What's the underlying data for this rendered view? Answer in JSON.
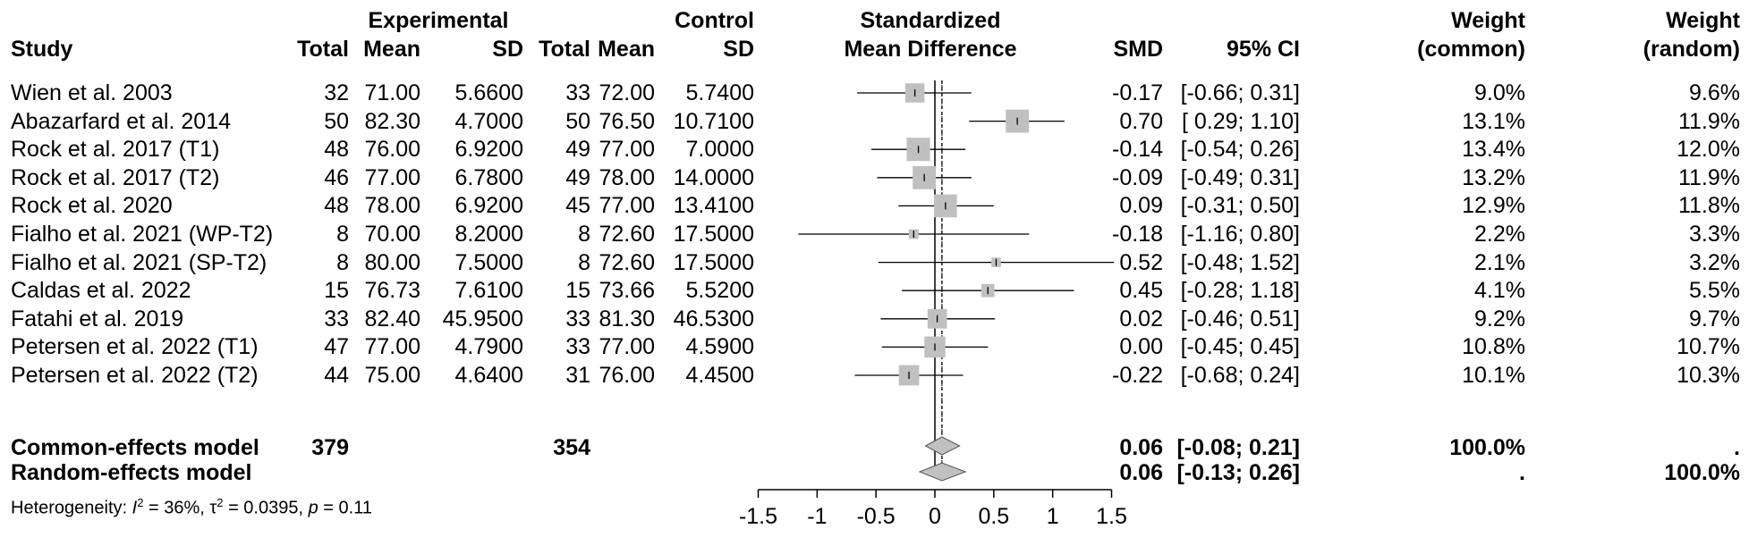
{
  "headers": {
    "experimental": "Experimental",
    "control": "Control",
    "smd_top": "Standardized",
    "smd_bottom": "Mean Difference",
    "study": "Study",
    "total": "Total",
    "mean": "Mean",
    "sd": "SD",
    "smd": "SMD",
    "ci": "95% CI",
    "weight": "Weight",
    "common": "(common)",
    "random": "(random)"
  },
  "studies": [
    {
      "study": "Wien et al. 2003",
      "e_total": "32",
      "e_mean": "71.00",
      "e_sd": "5.6600",
      "c_total": "33",
      "c_mean": "72.00",
      "c_sd": "5.7400",
      "smd": "-0.17",
      "ci": "[-0.66; 0.31]",
      "w_common": "9.0%",
      "w_random": "9.6%"
    },
    {
      "study": "Abazarfard et al. 2014",
      "e_total": "50",
      "e_mean": "82.30",
      "e_sd": "4.7000",
      "c_total": "50",
      "c_mean": "76.50",
      "c_sd": "10.7100",
      "smd": "0.70",
      "ci": "[ 0.29; 1.10]",
      "w_common": "13.1%",
      "w_random": "11.9%"
    },
    {
      "study": "Rock et al. 2017 (T1)",
      "e_total": "48",
      "e_mean": "76.00",
      "e_sd": "6.9200",
      "c_total": "49",
      "c_mean": "77.00",
      "c_sd": "7.0000",
      "smd": "-0.14",
      "ci": "[-0.54; 0.26]",
      "w_common": "13.4%",
      "w_random": "12.0%"
    },
    {
      "study": "Rock et al. 2017 (T2)",
      "e_total": "46",
      "e_mean": "77.00",
      "e_sd": "6.7800",
      "c_total": "49",
      "c_mean": "78.00",
      "c_sd": "14.0000",
      "smd": "-0.09",
      "ci": "[-0.49; 0.31]",
      "w_common": "13.2%",
      "w_random": "11.9%"
    },
    {
      "study": "Rock et al. 2020",
      "e_total": "48",
      "e_mean": "78.00",
      "e_sd": "6.9200",
      "c_total": "45",
      "c_mean": "77.00",
      "c_sd": "13.4100",
      "smd": "0.09",
      "ci": "[-0.31; 0.50]",
      "w_common": "12.9%",
      "w_random": "11.8%"
    },
    {
      "study": "Fialho et al. 2021 (WP-T2)",
      "e_total": "8",
      "e_mean": "70.00",
      "e_sd": "8.2000",
      "c_total": "8",
      "c_mean": "72.60",
      "c_sd": "17.5000",
      "smd": "-0.18",
      "ci": "[-1.16; 0.80]",
      "w_common": "2.2%",
      "w_random": "3.3%"
    },
    {
      "study": "Fialho et al. 2021 (SP-T2)",
      "e_total": "8",
      "e_mean": "80.00",
      "e_sd": "7.5000",
      "c_total": "8",
      "c_mean": "72.60",
      "c_sd": "17.5000",
      "smd": "0.52",
      "ci": "[-0.48; 1.52]",
      "w_common": "2.1%",
      "w_random": "3.2%"
    },
    {
      "study": "Caldas et al. 2022",
      "e_total": "15",
      "e_mean": "76.73",
      "e_sd": "7.6100",
      "c_total": "15",
      "c_mean": "73.66",
      "c_sd": "5.5200",
      "smd": "0.45",
      "ci": "[-0.28; 1.18]",
      "w_common": "4.1%",
      "w_random": "5.5%"
    },
    {
      "study": "Fatahi et al. 2019",
      "e_total": "33",
      "e_mean": "82.40",
      "e_sd": "45.9500",
      "c_total": "33",
      "c_mean": "81.30",
      "c_sd": "46.5300",
      "smd": "0.02",
      "ci": "[-0.46; 0.51]",
      "w_common": "9.2%",
      "w_random": "9.7%"
    },
    {
      "study": "Petersen et al. 2022 (T1)",
      "e_total": "47",
      "e_mean": "77.00",
      "e_sd": "4.7900",
      "c_total": "33",
      "c_mean": "77.00",
      "c_sd": "4.5900",
      "smd": "0.00",
      "ci": "[-0.45; 0.45]",
      "w_common": "10.8%",
      "w_random": "10.7%"
    },
    {
      "study": "Petersen et al. 2022 (T2)",
      "e_total": "44",
      "e_mean": "75.00",
      "e_sd": "4.6400",
      "c_total": "31",
      "c_mean": "76.00",
      "c_sd": "4.4500",
      "smd": "-0.22",
      "ci": "[-0.68; 0.24]",
      "w_common": "10.1%",
      "w_random": "10.3%"
    }
  ],
  "common_model": {
    "label": "Common-effects model",
    "e_total": "379",
    "c_total": "354",
    "smd": "0.06",
    "ci": "[-0.08; 0.21]",
    "w_common": "100.0%",
    "w_random": "."
  },
  "random_model": {
    "label": "Random-effects model",
    "smd": "0.06",
    "ci": "[-0.13; 0.26]",
    "w_common": ".",
    "w_random": "100.0%"
  },
  "heterogeneity": {
    "prefix": "Heterogeneity: ",
    "i2_sym": "I",
    "i2_sup": "2",
    "i2_val": " = 36%, ",
    "tau_sym": "τ",
    "tau_sup": "2",
    "tau_val": " = 0.0395, ",
    "p_sym": "p",
    "p_val": " = 0.11"
  },
  "chart_data": {
    "type": "forest",
    "xlim": [
      -1.5,
      1.5
    ],
    "ticks": [
      "-1.5",
      "-1",
      "-0.5",
      "0",
      "0.5",
      "1",
      "1.5"
    ],
    "tick_values": [
      -1.5,
      -1,
      -0.5,
      0,
      0.5,
      1,
      1.5
    ],
    "points": [
      {
        "smd": -0.17,
        "lo": -0.66,
        "hi": 0.31,
        "w": 9.0
      },
      {
        "smd": 0.7,
        "lo": 0.29,
        "hi": 1.1,
        "w": 13.1
      },
      {
        "smd": -0.14,
        "lo": -0.54,
        "hi": 0.26,
        "w": 13.4
      },
      {
        "smd": -0.09,
        "lo": -0.49,
        "hi": 0.31,
        "w": 13.2
      },
      {
        "smd": 0.09,
        "lo": -0.31,
        "hi": 0.5,
        "w": 12.9
      },
      {
        "smd": -0.18,
        "lo": -1.16,
        "hi": 0.8,
        "w": 2.2
      },
      {
        "smd": 0.52,
        "lo": -0.48,
        "hi": 1.52,
        "w": 2.1
      },
      {
        "smd": 0.45,
        "lo": -0.28,
        "hi": 1.18,
        "w": 4.1
      },
      {
        "smd": 0.02,
        "lo": -0.46,
        "hi": 0.51,
        "w": 9.2
      },
      {
        "smd": 0.0,
        "lo": -0.45,
        "hi": 0.45,
        "w": 10.8
      },
      {
        "smd": -0.22,
        "lo": -0.68,
        "hi": 0.24,
        "w": 10.1
      }
    ],
    "common": {
      "smd": 0.06,
      "lo": -0.08,
      "hi": 0.21
    },
    "random": {
      "smd": 0.06,
      "lo": -0.13,
      "hi": 0.26
    },
    "colors": {
      "box": "#c0c0c0",
      "diamond": "#c0c0c0",
      "line": "#000000"
    }
  }
}
